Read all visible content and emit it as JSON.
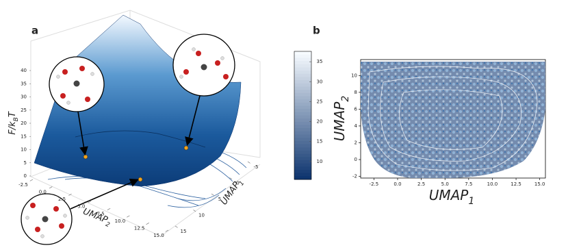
{
  "chart_data": [
    {
      "type": "surface3d",
      "panel_label": "a",
      "zlabel": {
        "text": "F/k",
        "sub": "B",
        "after": "T"
      },
      "xlabel": {
        "text": "UMAP",
        "sub": "2"
      },
      "ylabel": {
        "text": "UMAP",
        "sub": "1"
      },
      "xlim": [
        -2.5,
        15
      ],
      "xticks": [
        -2.5,
        {
          "value": 0,
          "label": "0.0"
        },
        2.5,
        {
          "value": 5,
          "label": "5.0"
        },
        7.5,
        {
          "value": 10,
          "label": "10.0"
        },
        12.5,
        {
          "value": 15,
          "label": "15.0"
        }
      ],
      "ylim": [
        -5,
        15
      ],
      "yticks": [
        -5,
        0,
        5,
        10,
        15
      ],
      "zlim": [
        0,
        40
      ],
      "zticks": [
        0,
        5,
        10,
        15,
        20,
        25,
        30,
        35,
        40
      ],
      "cmap": [
        "#08306b",
        "#f7fbff"
      ]
    },
    {
      "type": "heatmap",
      "panel_label": "b",
      "xlabel": {
        "text": "UMAP",
        "sub": "1"
      },
      "ylabel": {
        "text": "UMAP",
        "sub": "2"
      },
      "xlim": [
        -3.9,
        15.6
      ],
      "xticks": [
        -2.5,
        {
          "value": 0,
          "label": "0.0"
        },
        2.5,
        {
          "value": 5,
          "label": "5.0"
        },
        7.5,
        {
          "value": 10,
          "label": "10.0"
        },
        12.5,
        {
          "value": 15,
          "label": "15.0"
        }
      ],
      "ylim": [
        -2.2,
        11.9
      ],
      "yticks": [
        -2,
        0,
        2,
        4,
        6,
        8,
        10
      ],
      "clim": [
        5.5,
        37.6
      ],
      "cticks": [
        10,
        15,
        20,
        25,
        30,
        35
      ],
      "cmap": [
        "#08306b",
        "#f7fbff"
      ]
    }
  ]
}
